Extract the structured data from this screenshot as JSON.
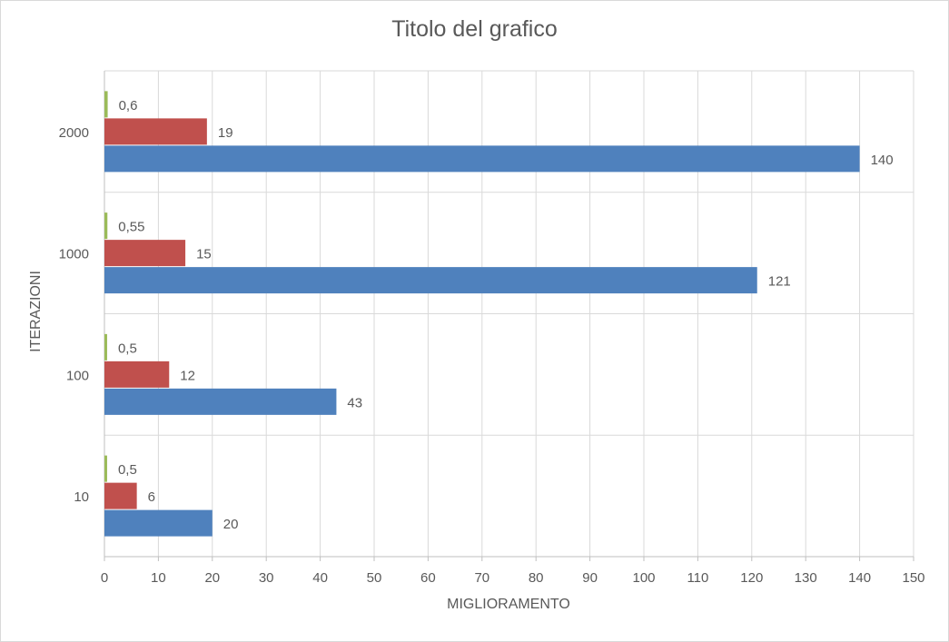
{
  "chart_data": {
    "type": "bar",
    "orientation": "horizontal",
    "title": "Titolo del grafico",
    "xlabel": "MIGLIORAMENTO",
    "ylabel": "ITERAZIONI",
    "categories": [
      "10",
      "100",
      "1000",
      "2000"
    ],
    "series": [
      {
        "values": [
          20,
          43,
          121,
          140
        ],
        "labels": [
          "20",
          "43",
          "121",
          "140"
        ],
        "color": "#4f81bd"
      },
      {
        "values": [
          6,
          12,
          15,
          19
        ],
        "labels": [
          "6",
          "12",
          "15",
          "19"
        ],
        "color": "#c0504d"
      },
      {
        "values": [
          0.5,
          0.5,
          0.55,
          0.6
        ],
        "labels": [
          "0,5",
          "0,5",
          "0,55",
          "0,6"
        ],
        "color": "#9bbb59"
      }
    ],
    "xlim": [
      0,
      150
    ],
    "x_ticks": [
      0,
      10,
      20,
      30,
      40,
      50,
      60,
      70,
      80,
      90,
      100,
      110,
      120,
      130,
      140,
      150
    ],
    "grid": true,
    "legend": "none"
  }
}
